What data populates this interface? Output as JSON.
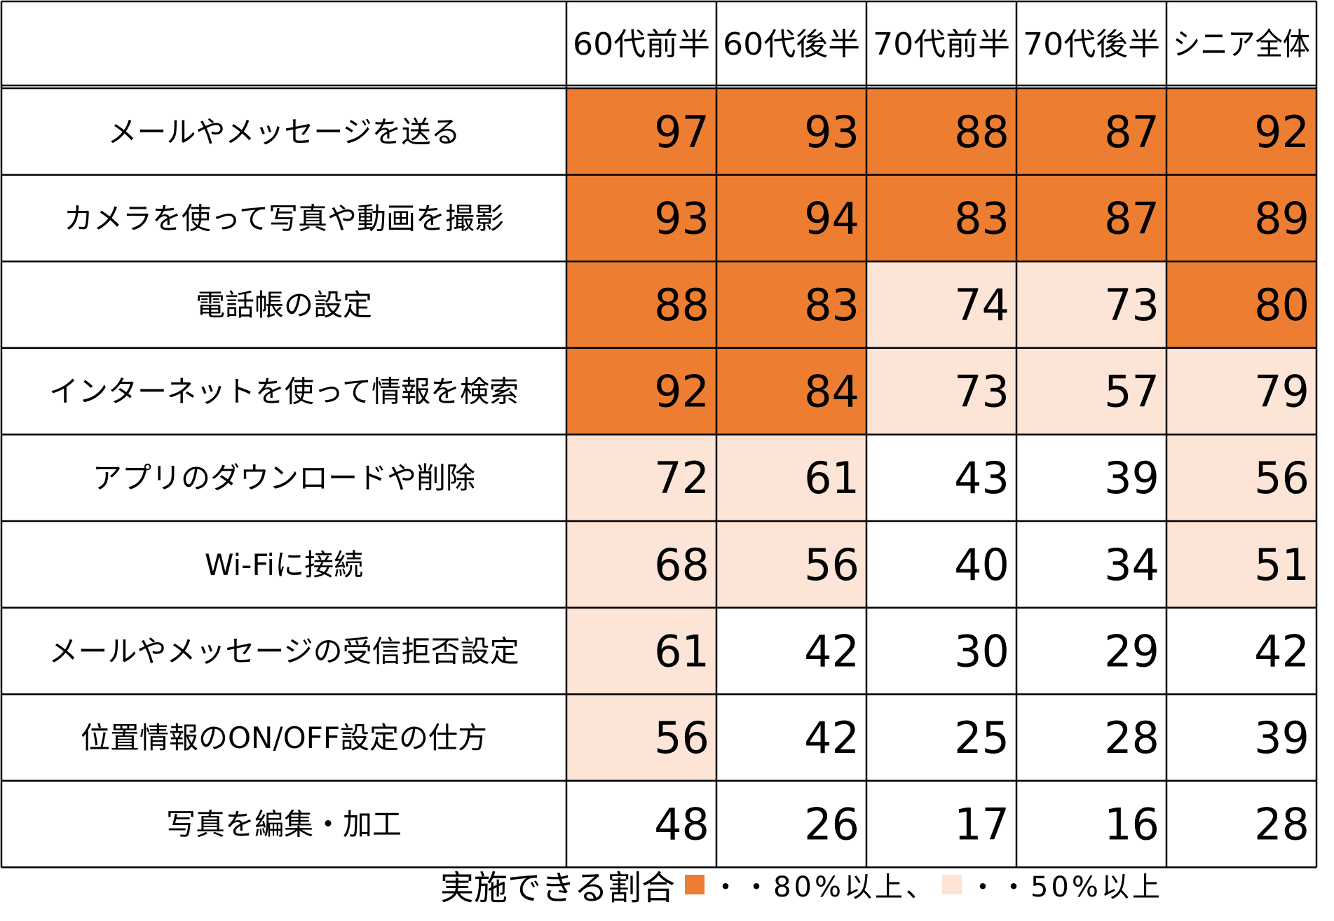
{
  "chart_data": {
    "type": "heatmap",
    "columns": [
      "60代前半",
      "60代後半",
      "70代前半",
      "70代後半",
      "シニア全体"
    ],
    "rows": [
      {
        "label": "メールやメッセージを送る",
        "values": [
          97,
          93,
          88,
          87,
          92
        ]
      },
      {
        "label": "カメラを使って写真や動画を撮影",
        "values": [
          93,
          94,
          83,
          87,
          89
        ]
      },
      {
        "label": "電話帳の設定",
        "values": [
          88,
          83,
          74,
          73,
          80
        ]
      },
      {
        "label": "インターネットを使って情報を検索",
        "values": [
          92,
          84,
          73,
          57,
          79
        ]
      },
      {
        "label": "アプリのダウンロードや削除",
        "values": [
          72,
          61,
          43,
          39,
          56
        ]
      },
      {
        "label": "Wi-Fiに接続",
        "values": [
          68,
          56,
          40,
          34,
          51
        ]
      },
      {
        "label": "メールやメッセージの受信拒否設定",
        "values": [
          61,
          42,
          30,
          29,
          42
        ]
      },
      {
        "label": "位置情報のON/OFF設定の仕方",
        "values": [
          56,
          42,
          25,
          28,
          39
        ]
      },
      {
        "label": "写真を編集・加工",
        "values": [
          48,
          26,
          17,
          16,
          28
        ]
      }
    ],
    "thresholds": {
      "high": 80,
      "mid": 50
    },
    "colors": {
      "high": "#ED7D31",
      "mid": "#FCE4D6",
      "low": "#FFFFFF",
      "border": "#000000"
    }
  },
  "legend": {
    "title": "実施できる割合",
    "high_label": "・・80%以上、",
    "mid_label": "・・50%以上"
  }
}
